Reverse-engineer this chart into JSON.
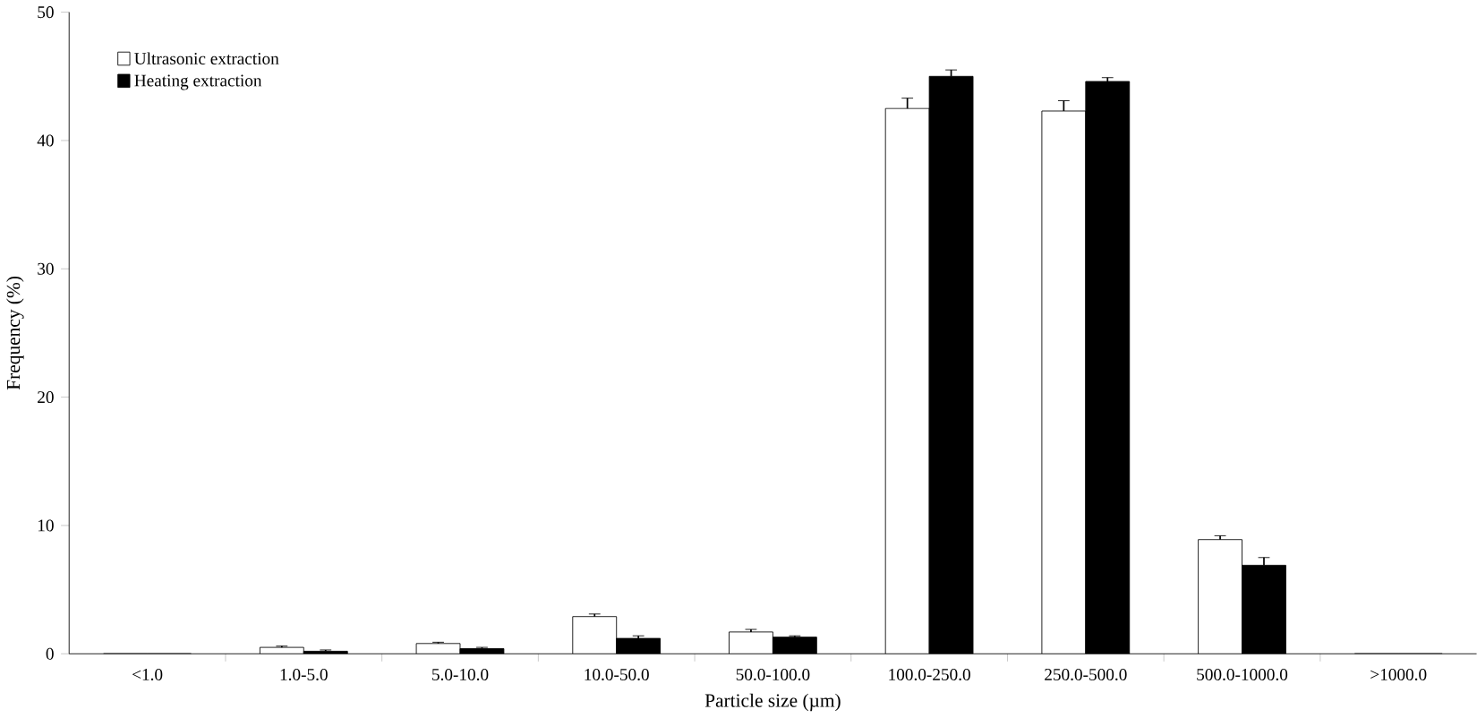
{
  "chart_data": {
    "type": "bar",
    "xlabel": "Particle size (µm)",
    "ylabel": "Frequency (%)",
    "categories": [
      "<1.0",
      "1.0-5.0",
      "5.0-10.0",
      "10.0-50.0",
      "50.0-100.0",
      "100.0-250.0",
      "250.0-500.0",
      "500.0-1000.0",
      ">1000.0"
    ],
    "series": [
      {
        "name": "Ultrasonic extraction",
        "color": "#ffffff",
        "values": [
          0,
          0.5,
          0.8,
          2.9,
          1.7,
          42.5,
          42.3,
          8.9,
          0
        ],
        "errors": [
          null,
          0.1,
          0.1,
          0.2,
          0.2,
          0.8,
          0.8,
          0.3,
          null
        ]
      },
      {
        "name": "Heating extraction",
        "color": "#000000",
        "values": [
          0,
          0.2,
          0.4,
          1.2,
          1.3,
          45.0,
          44.6,
          6.9,
          0
        ],
        "errors": [
          null,
          0.1,
          0.1,
          0.2,
          0.1,
          0.5,
          0.3,
          0.6,
          null
        ]
      }
    ],
    "ylim": [
      0,
      50
    ],
    "yticks": [
      0,
      10,
      20,
      30,
      40,
      50
    ],
    "legend": "top left"
  }
}
